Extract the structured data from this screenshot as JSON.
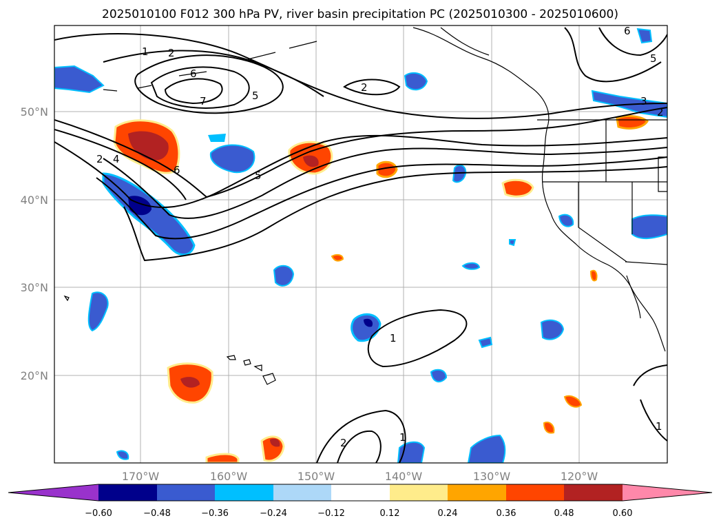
{
  "title": "2025010100 F012 300 hPa PV, river basin precipitation PC (2025010300 - 2025010600)",
  "map": {
    "lat_labels": [
      "50°N",
      "40°N",
      "30°N",
      "20°N"
    ],
    "lon_labels": [
      "170°W",
      "160°W",
      "150°W",
      "140°W",
      "130°W",
      "120°W"
    ],
    "grid": true,
    "gridline_color": "#b0b0b0"
  },
  "contours": {
    "line_color": "#000000",
    "labels": [
      "1",
      "2",
      "6",
      "7",
      "5",
      "2",
      "4",
      "2",
      "6",
      "5",
      "3",
      "2",
      "6",
      "5",
      "1",
      "2",
      "1",
      "1"
    ]
  },
  "colorbar": {
    "ticks": [
      "−0.60",
      "−0.48",
      "−0.36",
      "−0.24",
      "−0.12",
      "0.12",
      "0.24",
      "0.36",
      "0.48",
      "0.60"
    ],
    "colors": [
      "#9932cc",
      "#00008b",
      "#3a5bd0",
      "#00bfff",
      "#add8f8",
      "#ffffff",
      "#ffec8b",
      "#ffa500",
      "#ff4500",
      "#b22222",
      "#ff88aa"
    ]
  }
}
